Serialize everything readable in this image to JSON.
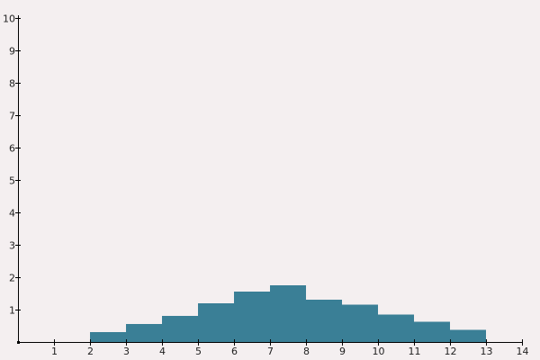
{
  "chart_data": {
    "type": "bar",
    "title": "",
    "xlabel": "",
    "ylabel": "",
    "xlim": [
      0,
      14
    ],
    "ylim": [
      0,
      10
    ],
    "x_ticks": [
      "1",
      "2",
      "3",
      "4",
      "5",
      "6",
      "7",
      "8",
      "9",
      "10",
      "11",
      "12",
      "13",
      "14"
    ],
    "y_ticks": [
      "1",
      "2",
      "3",
      "4",
      "5",
      "6",
      "7",
      "8",
      "9",
      "10"
    ],
    "grid": false,
    "bar_color": "#3a7f96",
    "bins": [
      {
        "x_start": 2,
        "x_end": 3,
        "value": 0.3
      },
      {
        "x_start": 3,
        "x_end": 4,
        "value": 0.55
      },
      {
        "x_start": 4,
        "x_end": 5,
        "value": 0.8
      },
      {
        "x_start": 5,
        "x_end": 6,
        "value": 1.2
      },
      {
        "x_start": 6,
        "x_end": 7,
        "value": 1.55
      },
      {
        "x_start": 7,
        "x_end": 8,
        "value": 1.75
      },
      {
        "x_start": 8,
        "x_end": 9,
        "value": 1.3
      },
      {
        "x_start": 9,
        "x_end": 10,
        "value": 1.15
      },
      {
        "x_start": 10,
        "x_end": 11,
        "value": 0.85
      },
      {
        "x_start": 11,
        "x_end": 12,
        "value": 0.62
      },
      {
        "x_start": 12,
        "x_end": 13,
        "value": 0.38
      }
    ]
  }
}
